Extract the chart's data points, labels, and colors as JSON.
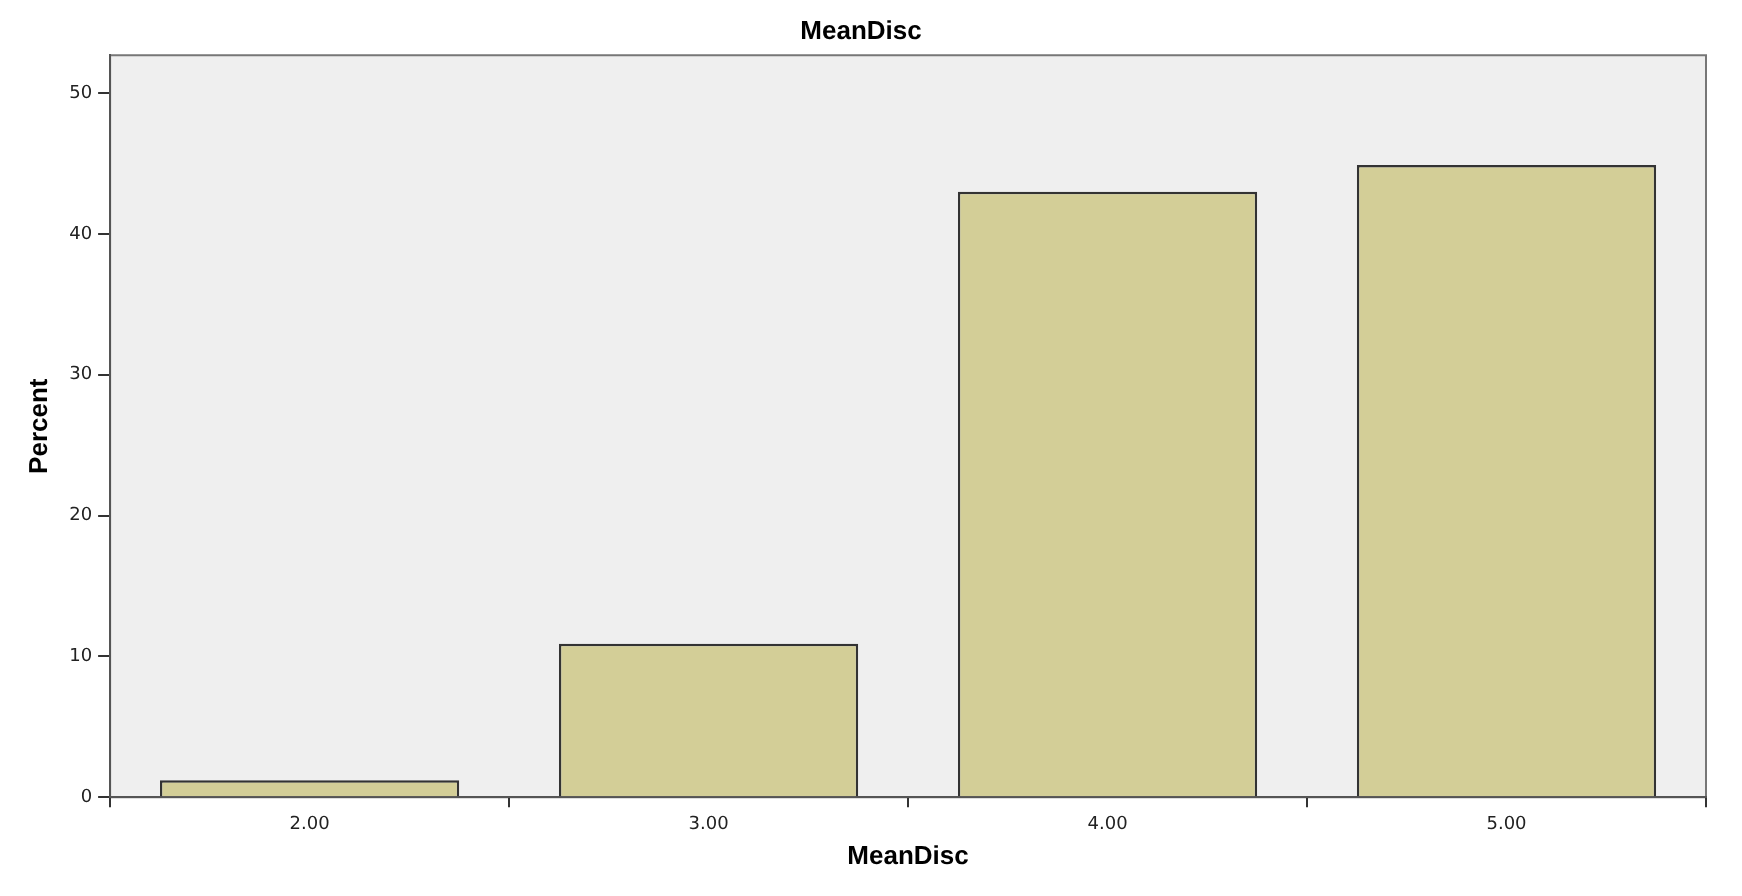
{
  "chart_data": {
    "type": "bar",
    "title": "MeanDisc",
    "xlabel": "MeanDisc",
    "ylabel": "Percent",
    "categories": [
      "2.00",
      "3.00",
      "4.00",
      "5.00"
    ],
    "values": [
      1.2,
      10.9,
      43.0,
      44.9
    ],
    "color": "#d3ce97",
    "ylim": [
      0,
      52.7
    ],
    "yticks": [
      0,
      10,
      20,
      30,
      40,
      50
    ],
    "grid": false,
    "legend": false
  }
}
